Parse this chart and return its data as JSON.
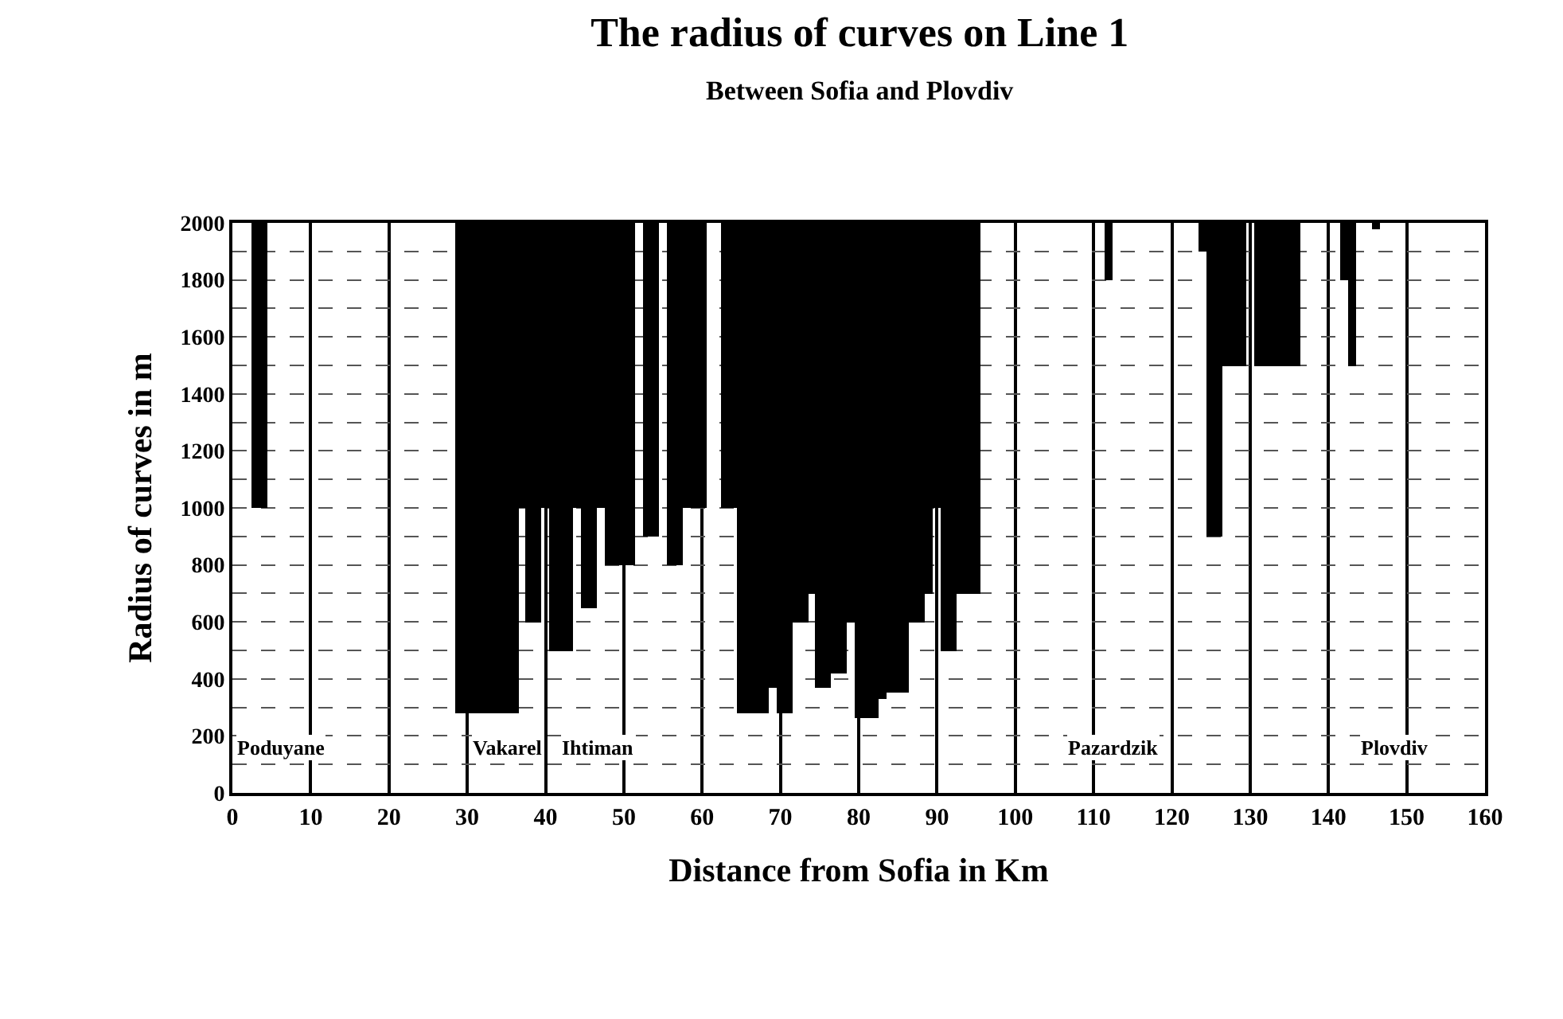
{
  "chart_data": {
    "type": "bar",
    "title": "The radius of curves on Line 1",
    "subtitle": "Between Sofia and Plovdiv",
    "xlabel": "Distance from Sofia in Km",
    "ylabel": "Radius of curves in m",
    "x": [
      3,
      4,
      29,
      30,
      31,
      32,
      33,
      34,
      35,
      36,
      37,
      38,
      39,
      40,
      41,
      42,
      43,
      44,
      45,
      46,
      47,
      48,
      49,
      50,
      51,
      53,
      54,
      56,
      57,
      58,
      59,
      60,
      63,
      64,
      65,
      66,
      67,
      68,
      69,
      70,
      71,
      72,
      73,
      74,
      75,
      76,
      77,
      78,
      79,
      80,
      81,
      82,
      83,
      84,
      85,
      86,
      87,
      88,
      89,
      90,
      91,
      92,
      93,
      94,
      95,
      112,
      124,
      125,
      126,
      127,
      128,
      129,
      131,
      132,
      133,
      134,
      135,
      136,
      142,
      143,
      146
    ],
    "base": [
      2000,
      2000,
      2000,
      2000,
      2000,
      2000,
      2000,
      2000,
      2000,
      2000,
      2000,
      2000,
      2000,
      2000,
      2000,
      2000,
      2000,
      2000,
      2000,
      2000,
      2000,
      2000,
      2000,
      2000,
      2000,
      2000,
      2000,
      2000,
      2000,
      2000,
      2000,
      2000,
      2000,
      2000,
      2000,
      2000,
      2000,
      2000,
      2000,
      2000,
      2000,
      2000,
      2000,
      2000,
      2000,
      2000,
      2000,
      2000,
      2000,
      2000,
      2000,
      2000,
      2000,
      2000,
      2000,
      2000,
      2000,
      2000,
      2000,
      2000,
      2000,
      2000,
      2000,
      2000,
      2000,
      2000,
      2000,
      2000,
      2000,
      2000,
      2000,
      2000,
      2000,
      2000,
      2000,
      2000,
      2000,
      2000,
      2000,
      2000,
      2000
    ],
    "values": [
      -1000,
      -1000,
      -1720,
      -1720,
      -1720,
      -1720,
      -1720,
      -1720,
      -1720,
      -1720,
      -1000,
      -1400,
      -1400,
      -1000,
      -1500,
      -1500,
      -1500,
      -1000,
      -1350,
      -1350,
      -1000,
      -1200,
      -1200,
      -1200,
      -1200,
      -1100,
      -1100,
      -1200,
      -1200,
      -1000,
      -1000,
      -1000,
      -1000,
      -1000,
      -1720,
      -1720,
      -1720,
      -1720,
      -1630,
      -1720,
      -1720,
      -1400,
      -1400,
      -1300,
      -1630,
      -1630,
      -1580,
      -1580,
      -1400,
      -1740,
      -1740,
      -1740,
      -1670,
      -1650,
      -1650,
      -1650,
      -1400,
      -1400,
      -1300,
      -1000,
      -1500,
      -1500,
      -1300,
      -1300,
      -1300,
      -200,
      -100,
      -1100,
      -1100,
      -500,
      -500,
      -500,
      -500,
      -500,
      -500,
      -500,
      -500,
      -500,
      -200,
      -500,
      -20
    ],
    "color": "#000000",
    "xlim": [
      0,
      160
    ],
    "xticks": [
      0,
      10,
      20,
      30,
      40,
      50,
      60,
      70,
      80,
      90,
      100,
      110,
      120,
      130,
      140,
      150,
      160
    ],
    "ylim": [
      0,
      2000
    ],
    "yticks": [
      0,
      {
        "value": 100,
        "label": null
      },
      200,
      {
        "value": 300,
        "label": null
      },
      400,
      {
        "value": 500,
        "label": null
      },
      600,
      {
        "value": 700,
        "label": null
      },
      800,
      {
        "value": 900,
        "label": null
      },
      1000,
      {
        "value": 1100,
        "label": null
      },
      1200,
      {
        "value": 1300,
        "label": null
      },
      1400,
      {
        "value": 1500,
        "label": null
      },
      1600,
      {
        "value": 1700,
        "label": null
      },
      1800,
      {
        "value": 1900,
        "label": null
      },
      2000
    ],
    "grid": true,
    "annotations": [
      "Poduyane",
      "Vakarel",
      "Ihtiman",
      "Pazardzik",
      "Plovdiv"
    ]
  }
}
